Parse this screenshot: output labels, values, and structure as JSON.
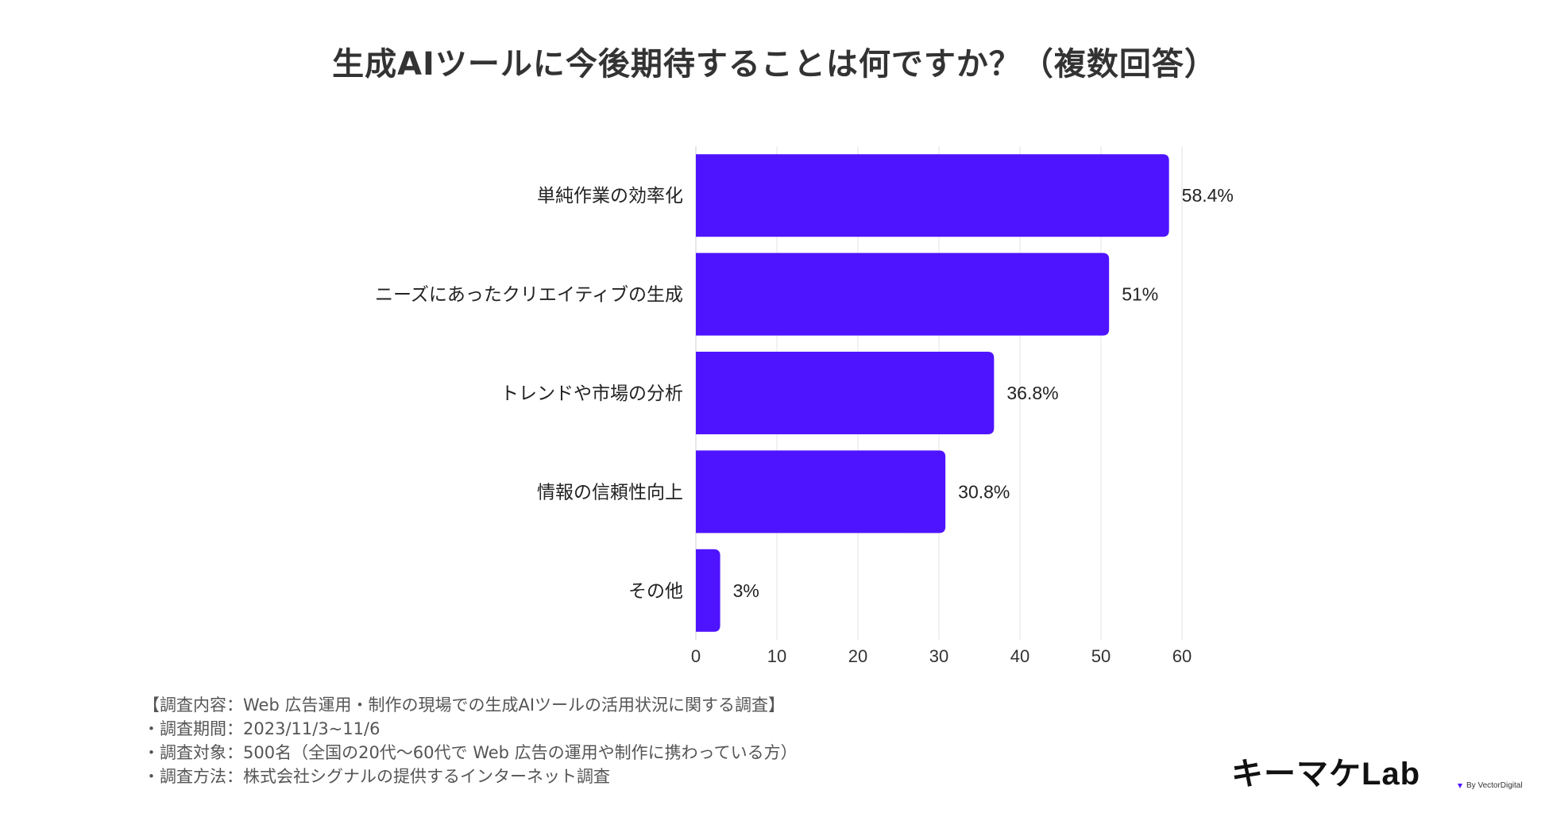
{
  "title": "生成AIツールに今後期待することは何ですか？（複数回答）",
  "chart_data": {
    "type": "bar",
    "orientation": "horizontal",
    "title": "生成AIツールに今後期待することは何ですか？（複数回答）",
    "categories": [
      "単純作業の効率化",
      "ニーズにあったクリエイティブの生成",
      "トレンドや市場の分析",
      "情報の信頼性向上",
      "その他"
    ],
    "values": [
      58.4,
      51,
      36.8,
      30.8,
      3
    ],
    "value_labels": [
      "58.4%",
      "51%",
      "36.8%",
      "30.8%",
      "3%"
    ],
    "xlim": [
      0,
      60
    ],
    "xticks": [
      "0",
      "10",
      "20",
      "30",
      "40",
      "50",
      "60"
    ],
    "grid": true,
    "bar_color": "#4f14ff"
  },
  "footnotes": {
    "line1": "【調査内容：Web 広告運用・制作の現場での生成AIツールの活用状況に関する調査】",
    "line2": "・調査期間：2023/11/3~11/6",
    "line3": "・調査対象：500名（全国の20代〜60代で Web 広告の運用や制作に携わっている方）",
    "line4": "・調査方法：株式会社シグナルの提供するインターネット調査"
  },
  "logo": {
    "text": "キーマケLab",
    "byline": "By VectorDigital",
    "accent_color": "#4f14ff"
  }
}
